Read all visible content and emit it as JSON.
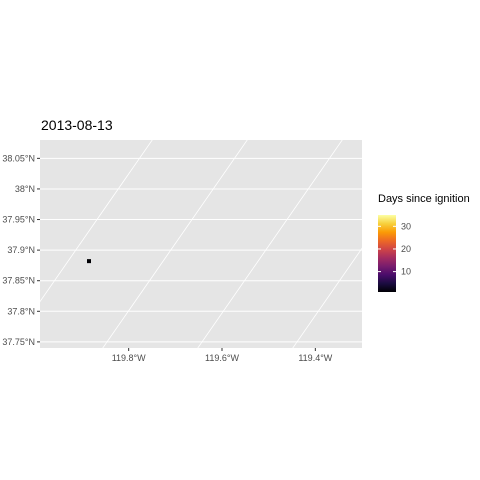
{
  "chart_data": {
    "type": "scatter",
    "title": "2013-08-13",
    "xlabel": "",
    "ylabel": "",
    "xlim": [
      -119.99,
      -119.3
    ],
    "ylim": [
      37.74,
      38.08
    ],
    "x_ticks": [
      {
        "value": -119.8,
        "label": "119.8°W"
      },
      {
        "value": -119.6,
        "label": "119.6°W"
      },
      {
        "value": -119.4,
        "label": "119.4°W"
      }
    ],
    "y_ticks": [
      {
        "value": 37.75,
        "label": "37.75°N"
      },
      {
        "value": 37.8,
        "label": "37.8°N"
      },
      {
        "value": 37.85,
        "label": "37.85°N"
      },
      {
        "value": 37.9,
        "label": "37.9°N"
      },
      {
        "value": 37.95,
        "label": "37.95°N"
      },
      {
        "value": 38.0,
        "label": "38°N"
      },
      {
        "value": 38.05,
        "label": "38.05°N"
      }
    ],
    "points": [
      {
        "lon": -119.885,
        "lat": 37.882,
        "days": 1
      }
    ],
    "grid": true,
    "legend": {
      "title": "Days since ignition",
      "position": "right",
      "range": [
        1,
        35
      ],
      "ticks": [
        10,
        20,
        30
      ],
      "colors": [
        "#000004",
        "#1b0c41",
        "#4a0c6b",
        "#781c6d",
        "#a52c60",
        "#cf4446",
        "#ed6925",
        "#fb9b06",
        "#f7d13d",
        "#fcffa4"
      ]
    },
    "panel_color": "#e5e5e5",
    "grid_color": "#ffffff",
    "point_color": "#000004"
  }
}
